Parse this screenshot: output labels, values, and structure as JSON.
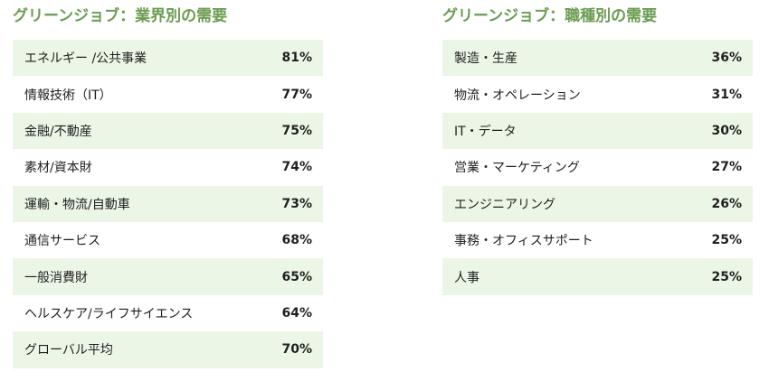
{
  "industry": {
    "title": "グリーンジョブ：業界別の需要",
    "rows": [
      {
        "label": "エネルギー /公共事業",
        "value": "81%"
      },
      {
        "label": "情報技術（IT）",
        "value": "77%"
      },
      {
        "label": "金融/不動産",
        "value": "75%"
      },
      {
        "label": "素材/資本財",
        "value": "74%"
      },
      {
        "label": "運輸・物流/自動車",
        "value": "73%"
      },
      {
        "label": "通信サービス",
        "value": "68%"
      },
      {
        "label": "一般消費財",
        "value": "65%"
      },
      {
        "label": "ヘルスケア/ライフサイエンス",
        "value": "64%"
      },
      {
        "label": "グローバル平均",
        "value": "70%"
      }
    ]
  },
  "occupation": {
    "title": "グリーンジョブ：職種別の需要",
    "rows": [
      {
        "label": "製造・生産",
        "value": "36%"
      },
      {
        "label": "物流・オペレーション",
        "value": "31%"
      },
      {
        "label": "IT・データ",
        "value": "30%"
      },
      {
        "label": "営業・マーケティング",
        "value": "27%"
      },
      {
        "label": "エンジニアリング",
        "value": "26%"
      },
      {
        "label": "事務・オフィスサポート",
        "value": "25%"
      },
      {
        "label": "人事",
        "value": "25%"
      }
    ]
  },
  "colors": {
    "title": "#6c9c52",
    "row_shade": "#ecf6e6",
    "text": "#1f1f1f"
  }
}
